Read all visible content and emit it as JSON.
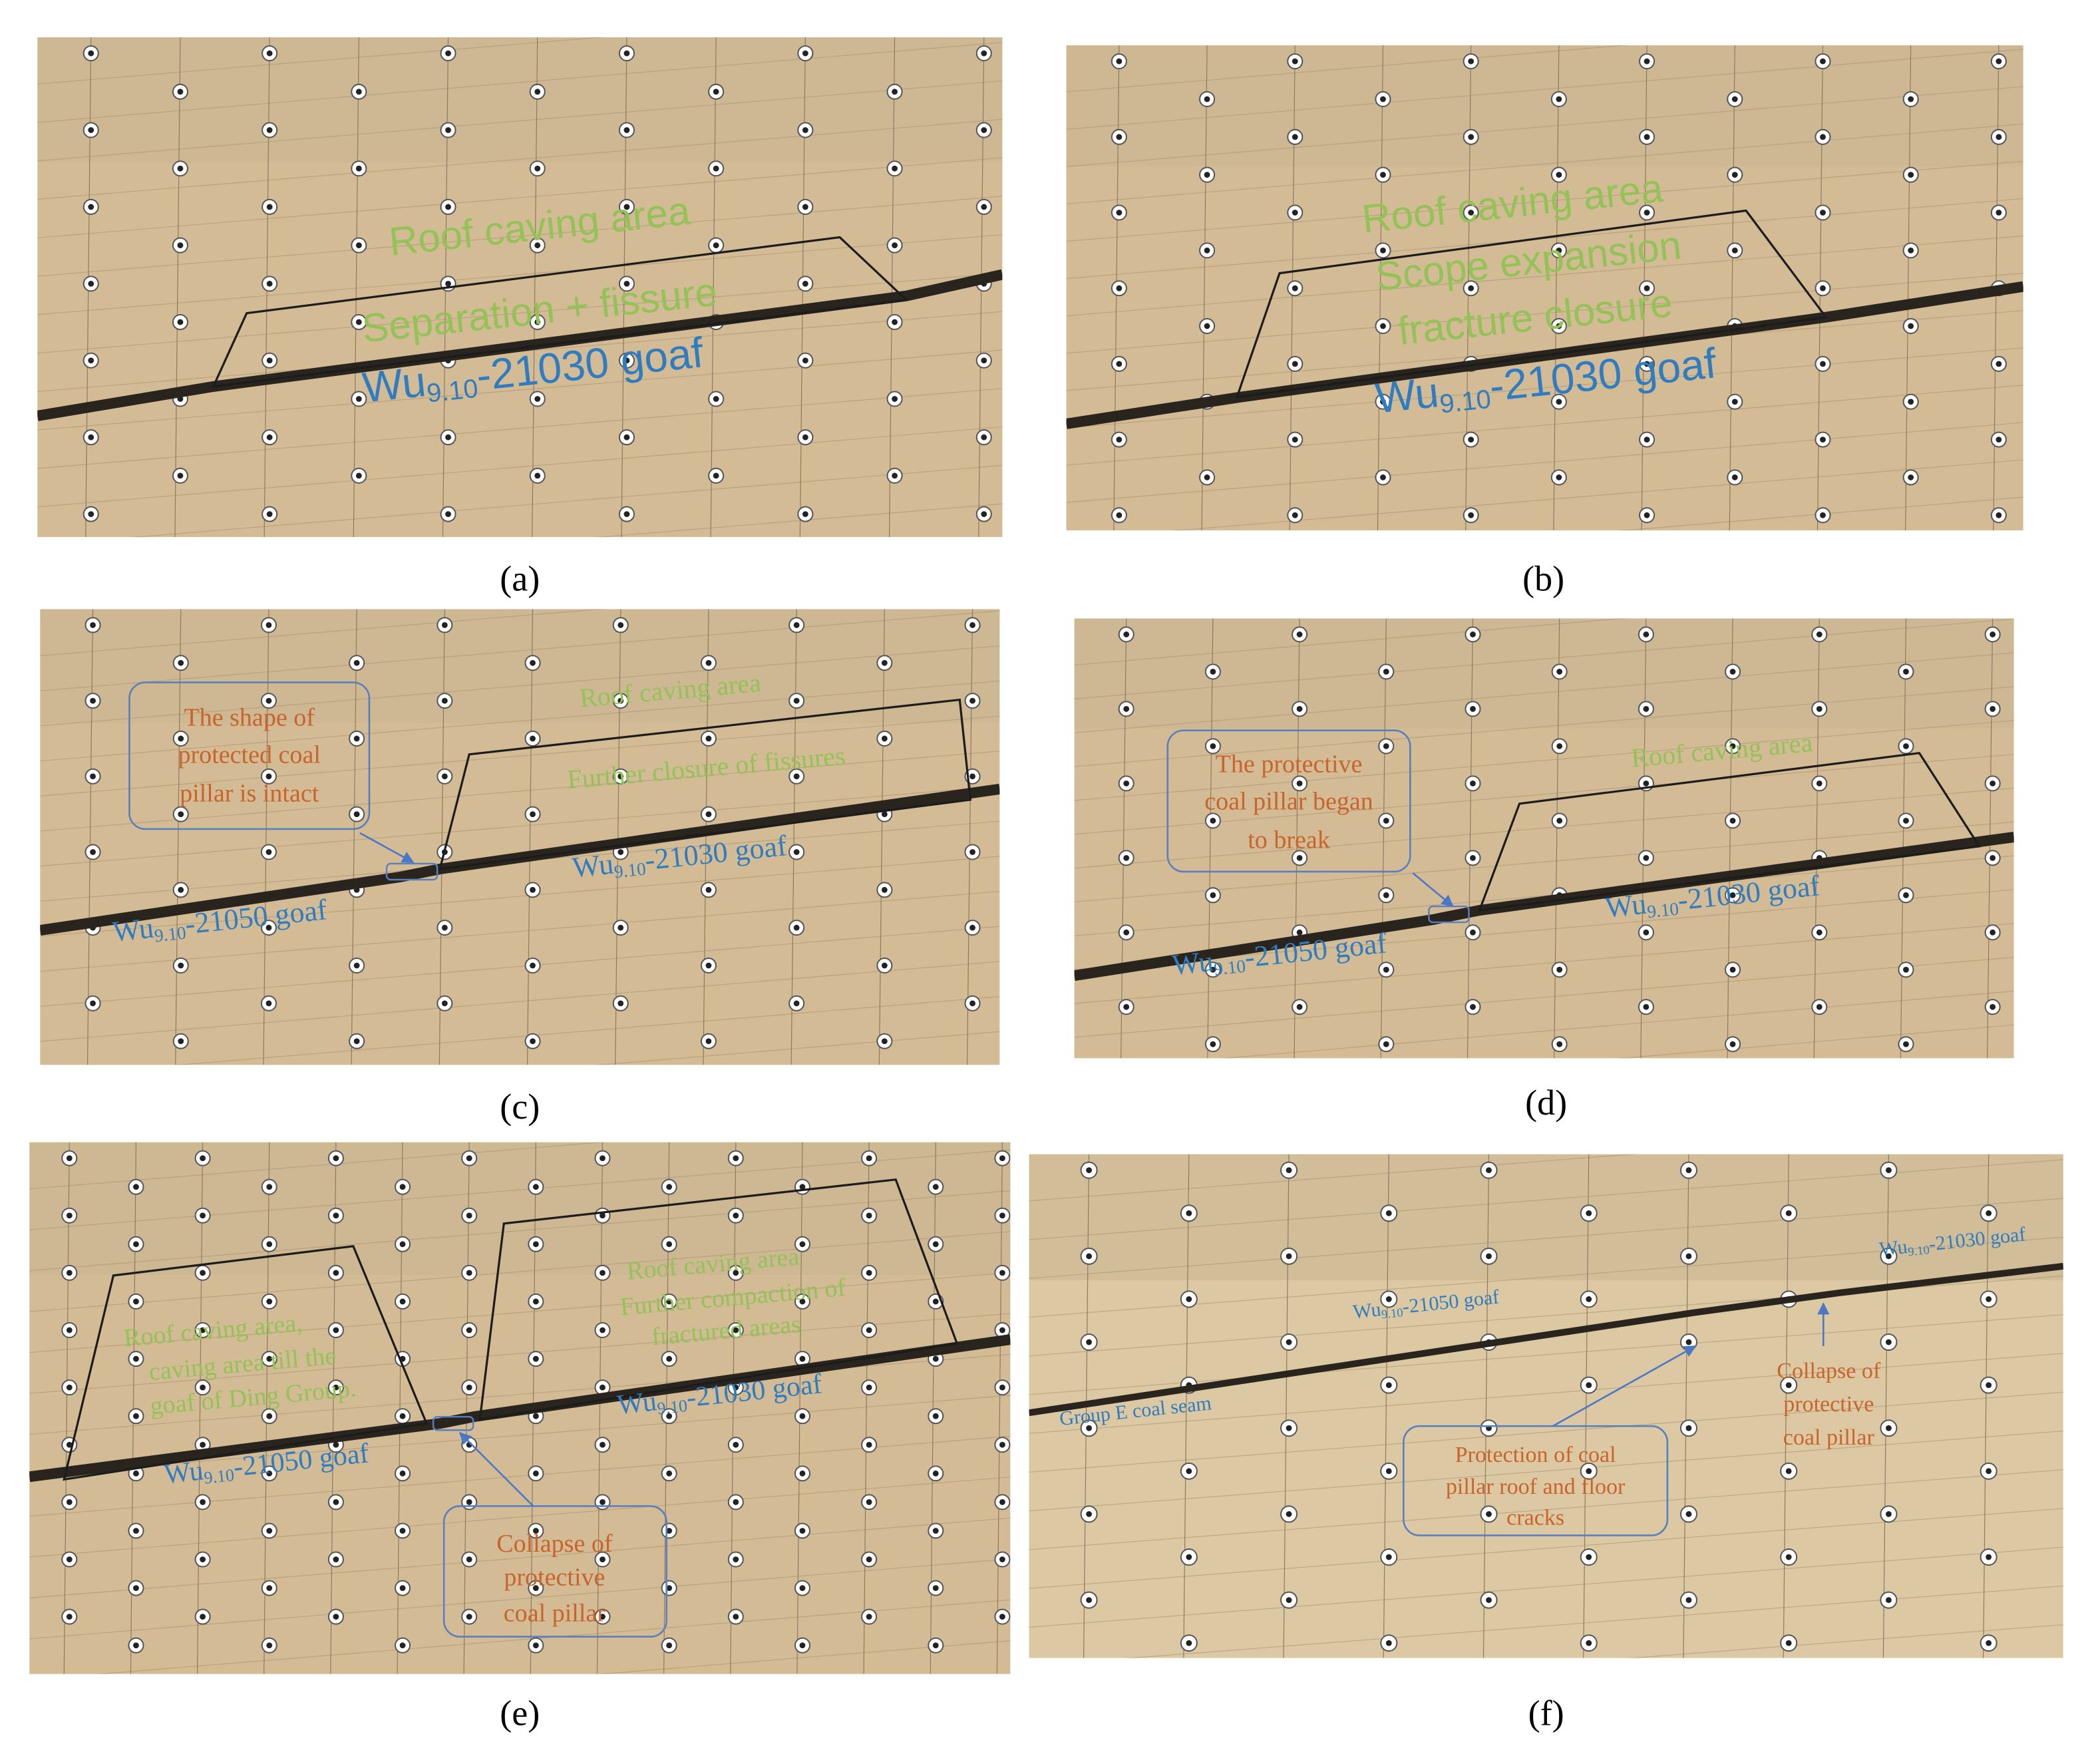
{
  "panels": [
    {
      "label": "(a)",
      "annotations": [
        {
          "text": "Roof caving area",
          "color": "#93c257"
        },
        {
          "text": "Separation + fissure",
          "color": "#93c257"
        },
        {
          "prefix": "Wu",
          "sub": "9.10",
          "suffix": "-21030 goaf",
          "color": "#2f7cc0"
        }
      ]
    },
    {
      "label": "(b)",
      "annotations": [
        {
          "text": "Roof caving area",
          "color": "#93c257"
        },
        {
          "text": "Scope expansion",
          "color": "#93c257"
        },
        {
          "text": "fracture closure",
          "color": "#93c257"
        },
        {
          "prefix": "Wu",
          "sub": "9.10",
          "suffix": "-21030 goaf",
          "color": "#2f7cc0"
        }
      ]
    },
    {
      "label": "(c)",
      "annotations": [
        {
          "text": "The shape of",
          "color": "#c8642c"
        },
        {
          "text": "protected coal",
          "color": "#c8642c"
        },
        {
          "text": "pillar is intact",
          "color": "#c8642c"
        },
        {
          "text": "Roof caving area",
          "color": "#93c257"
        },
        {
          "text": "Further closure of fissures",
          "color": "#93c257"
        },
        {
          "prefix": "Wu",
          "sub": "9.10",
          "suffix": "-21030 goaf",
          "color": "#2f7cc0"
        },
        {
          "prefix": "Wu",
          "sub": "9.10",
          "suffix": "-21050 goaf",
          "color": "#2f7cc0"
        }
      ]
    },
    {
      "label": "(d)",
      "annotations": [
        {
          "text": "The protective",
          "color": "#c8642c"
        },
        {
          "text": "coal pillar  began",
          "color": "#c8642c"
        },
        {
          "text": "to break",
          "color": "#c8642c"
        },
        {
          "text": "Roof caving area",
          "color": "#93c257"
        },
        {
          "prefix": "Wu",
          "sub": "9.10",
          "suffix": "-21030 goaf",
          "color": "#2f7cc0"
        },
        {
          "prefix": "Wu",
          "sub": "9.10",
          "suffix": "-21050 goaf",
          "color": "#2f7cc0"
        }
      ]
    },
    {
      "label": "(e)",
      "annotations": [
        {
          "text": "Roof caving area,",
          "color": "#93c257"
        },
        {
          "text": "caving area till the",
          "color": "#93c257"
        },
        {
          "text": "goaf of Ding Group.",
          "color": "#93c257"
        },
        {
          "text": "Roof caving area",
          "color": "#93c257"
        },
        {
          "text": "Further compaction of",
          "color": "#93c257"
        },
        {
          "text": "fractured areas",
          "color": "#93c257"
        },
        {
          "prefix": "Wu",
          "sub": "9.10",
          "suffix": "-21030 goaf",
          "color": "#2f7cc0"
        },
        {
          "prefix": "Wu",
          "sub": "9.10",
          "suffix": "-21050 goaf",
          "color": "#2f7cc0"
        },
        {
          "text": "Collapse of",
          "color": "#c8642c"
        },
        {
          "text": "protective",
          "color": "#c8642c"
        },
        {
          "text": "coal pillar",
          "color": "#c8642c"
        }
      ]
    },
    {
      "label": "(f)",
      "annotations": [
        {
          "prefix": "Wu",
          "sub": "9.10",
          "suffix": "-21030 goaf",
          "color": "#2f7cc0"
        },
        {
          "prefix": "Wu",
          "sub": "9.10",
          "suffix": "-21050 goaf",
          "color": "#2f7cc0"
        },
        {
          "text": "Group E coal seam",
          "color": "#2f7cc0"
        },
        {
          "text": "Protection of coal",
          "color": "#c8642c"
        },
        {
          "text": "pillar roof and floor",
          "color": "#c8642c"
        },
        {
          "text": "cracks",
          "color": "#c8642c"
        },
        {
          "text": "Collapse of",
          "color": "#c8642c"
        },
        {
          "text": "protective",
          "color": "#c8642c"
        },
        {
          "text": "coal pillar",
          "color": "#c8642c"
        }
      ]
    }
  ]
}
